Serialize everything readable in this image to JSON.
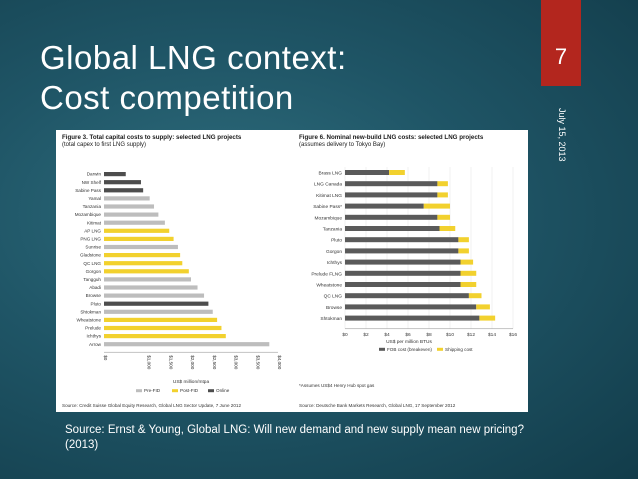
{
  "slide": {
    "title_line1": "Global LNG context:",
    "title_line2": "Cost competition",
    "page_number": "7",
    "date": "July 15, 2013",
    "caption": "Source:  Ernst & Young, Global LNG:  Will new demand and new supply mean new pricing? (2013)",
    "accent_color": "#b3261e"
  },
  "chart_data": [
    {
      "type": "bar",
      "orientation": "horizontal",
      "title": "Figure 3. Total capital costs to supply: selected LNG projects",
      "subtitle": "(total capex to first LNG supply)",
      "categories": [
        "Darwin",
        "NW Shelf",
        "Sabine Pass",
        "Yamal",
        "Tanzania",
        "Mozambique",
        "Kitimat",
        "AP LNG",
        "PNG LNG",
        "Sunrise",
        "Gladstone",
        "QC LNG",
        "Gorgon",
        "Tangguh",
        "Abadi",
        "Browse",
        "Pluto",
        "Shtokman",
        "Wheatstone",
        "Prelude",
        "Ichthys",
        "Arrow"
      ],
      "values": [
        500,
        850,
        900,
        1050,
        1150,
        1250,
        1400,
        1500,
        1600,
        1700,
        1750,
        1800,
        1950,
        2000,
        2150,
        2300,
        2400,
        2500,
        2600,
        2700,
        2800,
        3800
      ],
      "status": [
        "Online",
        "Online",
        "Online",
        "Pre-FID",
        "Pre-FID",
        "Pre-FID",
        "Pre-FID",
        "Post-FID",
        "Post-FID",
        "Pre-FID",
        "Post-FID",
        "Post-FID",
        "Post-FID",
        "Pre-FID",
        "Pre-FID",
        "Pre-FID",
        "Online",
        "Pre-FID",
        "Post-FID",
        "Post-FID",
        "Post-FID",
        "Pre-FID"
      ],
      "xticks": [
        "$0",
        "$1,000",
        "$1,500",
        "$2,000",
        "$2,500",
        "$3,000",
        "$3,500",
        "$4,000"
      ],
      "xtick_values": [
        0,
        1000,
        1500,
        2000,
        2500,
        3000,
        3500,
        4000
      ],
      "xlim": [
        0,
        4000
      ],
      "xlabel": "US$ million/mtpa",
      "legend": [
        {
          "name": "Pre-FID",
          "color": "#bdbdbd"
        },
        {
          "name": "Post-FID",
          "color": "#f2d12e"
        },
        {
          "name": "Online",
          "color": "#4d4d4d"
        }
      ],
      "source": "Source: Credit Suisse Global Equity Research, Global LNG Sector Update, 7 June 2012"
    },
    {
      "type": "bar",
      "orientation": "horizontal",
      "stacked": true,
      "title": "Figure 6. Nominal new-build LNG costs: selected LNG projects",
      "subtitle": "(assumes delivery to Tokyo Bay)",
      "categories": [
        "Brass LNG",
        "LNG Canada",
        "Kitimat LNG",
        "Sabine Pass*",
        "Mozambique",
        "Tanzania",
        "Pluto",
        "Gorgon",
        "Ichthys",
        "Prelude FLNG",
        "Wheatstone",
        "QC LNG",
        "Browse",
        "Shtokman"
      ],
      "series": [
        {
          "name": "FOB cost (breakeven)",
          "color": "#5a5a5a",
          "values": [
            4.2,
            8.8,
            8.8,
            7.5,
            8.8,
            9.0,
            10.8,
            10.8,
            11.0,
            11.0,
            11.0,
            11.8,
            12.5,
            12.8
          ]
        },
        {
          "name": "Shipping cost",
          "color": "#f2d12e",
          "values": [
            1.5,
            1.0,
            1.0,
            2.5,
            1.2,
            1.5,
            1.0,
            1.0,
            1.2,
            1.5,
            1.5,
            1.2,
            1.3,
            1.5
          ]
        }
      ],
      "xticks": [
        "$0",
        "$2",
        "$4",
        "$6",
        "$8",
        "$10",
        "$12",
        "$14",
        "$16"
      ],
      "xtick_values": [
        0,
        2,
        4,
        6,
        8,
        10,
        12,
        14,
        16
      ],
      "xlim": [
        0,
        16
      ],
      "xlabel": "US$ per million BTUs",
      "footnote": "*Assumes US$4 Henry Hub spot gas",
      "source": "Source: Deutsche Bank Markets Research, Global LNG, 17 September 2012"
    }
  ]
}
